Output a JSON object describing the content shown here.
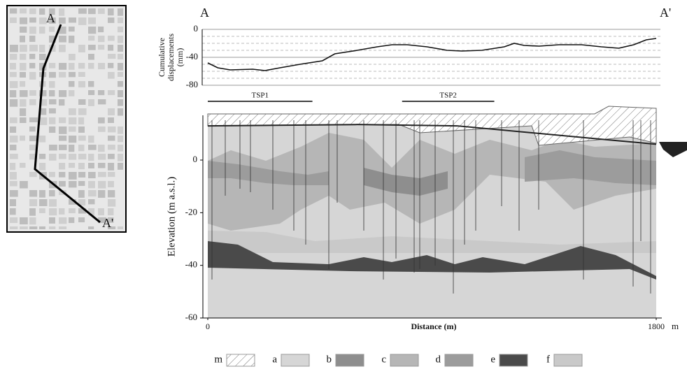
{
  "section": {
    "start": "A",
    "end": "A'"
  },
  "chart_data": [
    {
      "type": "line",
      "ylabel": [
        "Cumulative",
        "displacements",
        "(mm)"
      ],
      "x": [
        0,
        40,
        90,
        180,
        230,
        290,
        370,
        460,
        510,
        600,
        680,
        740,
        800,
        880,
        960,
        1020,
        1100,
        1190,
        1230,
        1270,
        1330,
        1410,
        1500,
        1580,
        1650,
        1710,
        1760,
        1800
      ],
      "values": [
        -48,
        -55,
        -58,
        -57,
        -59,
        -55,
        -50,
        -45,
        -35,
        -30,
        -25,
        -22,
        -22,
        -25,
        -30,
        -31,
        -30,
        -25,
        -20,
        -23,
        -24,
        -22,
        -22,
        -25,
        -27,
        -22,
        -15,
        -13
      ],
      "color": "#111111",
      "xlim": [
        0,
        1800
      ],
      "ylim": [
        -80,
        0
      ],
      "yticks": [
        0,
        -40,
        -80
      ],
      "minor_yticks": [
        -10,
        -20,
        -30,
        -50,
        -60,
        -70
      ],
      "periods": [
        {
          "label": "TSP1",
          "start": 0,
          "end": 420
        },
        {
          "label": "TSP2",
          "start": 780,
          "end": 1150
        }
      ]
    },
    {
      "type": "section",
      "xlabel": "Distance (m)",
      "ylabel": "Elevation (m a.s.l.)",
      "xlim": [
        0,
        1800
      ],
      "xticks": [
        0,
        1800
      ],
      "x_unit": "m",
      "ylim": [
        -60,
        17
      ],
      "yticks": [
        0,
        -20,
        -40,
        -60
      ],
      "profile": {
        "x": [
          0,
          600,
          1000,
          1800
        ],
        "values": [
          13,
          13.5,
          13,
          6
        ],
        "color": "#222222"
      },
      "legend": [
        {
          "key": "m",
          "color": "#ffffff",
          "pattern": "hatch"
        },
        {
          "key": "a",
          "color": "#d6d6d6"
        },
        {
          "key": "b",
          "color": "#8e8e8e"
        },
        {
          "key": "c",
          "color": "#b6b6b6"
        },
        {
          "key": "d",
          "color": "#9c9c9c"
        },
        {
          "key": "e",
          "color": "#4a4a4a"
        },
        {
          "key": "f",
          "color": "#c9c9c9"
        }
      ]
    }
  ]
}
